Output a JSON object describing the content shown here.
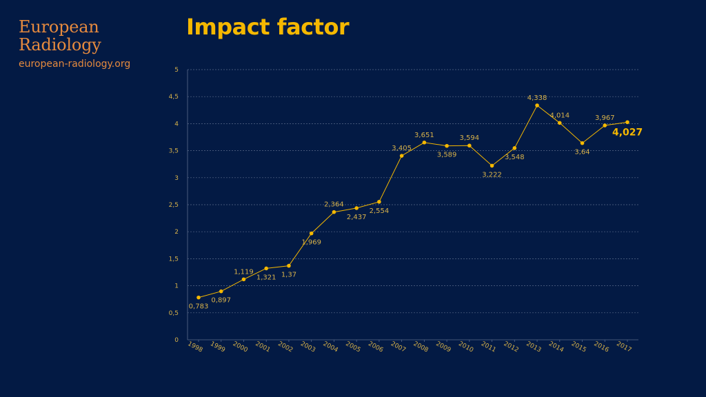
{
  "brand": {
    "name_line_1": "European",
    "name_line_2": "Radiology",
    "url": "european-radiology.org"
  },
  "colors": {
    "background": "#031a44",
    "brand": "#e68a3e",
    "title": "#f5b800",
    "series": "#f5b800",
    "label": "#d8b24a",
    "grid": "#5a6a8a"
  },
  "chart_data": {
    "type": "line",
    "title": "Impact factor",
    "xlabel": "",
    "ylabel": "",
    "ylim": [
      0,
      5
    ],
    "yticks": [
      "0",
      "0,5",
      "1",
      "1,5",
      "2",
      "2,5",
      "3",
      "3,5",
      "4",
      "4,5",
      "5"
    ],
    "grid": true,
    "legend": "none",
    "categories": [
      "1998",
      "1999",
      "2000",
      "2001",
      "2002",
      "2003",
      "2004",
      "2005",
      "2006",
      "2007",
      "2008",
      "2009",
      "2010",
      "2011",
      "2012",
      "2013",
      "2014",
      "2015",
      "2016",
      "2017"
    ],
    "values": [
      0.783,
      0.897,
      1.119,
      1.321,
      1.37,
      1.969,
      2.364,
      2.437,
      2.554,
      3.405,
      3.651,
      3.589,
      3.594,
      3.222,
      3.548,
      4.338,
      4.014,
      3.64,
      3.967,
      4.027
    ],
    "value_labels": [
      "0,783",
      "0,897",
      "1,119",
      "1,321",
      "1,37",
      "1,969",
      "2,364",
      "2,437",
      "2,554",
      "3,405",
      "3,651",
      "3,589",
      "3,594",
      "3,222",
      "3,548",
      "4,338",
      "4,014",
      "3,64",
      "3,967",
      "4,027"
    ],
    "label_positions": [
      "below",
      "below",
      "above",
      "below",
      "below",
      "below",
      "above",
      "below",
      "below",
      "above",
      "above",
      "below",
      "above",
      "below",
      "below",
      "above",
      "above",
      "below",
      "above",
      "right"
    ]
  }
}
